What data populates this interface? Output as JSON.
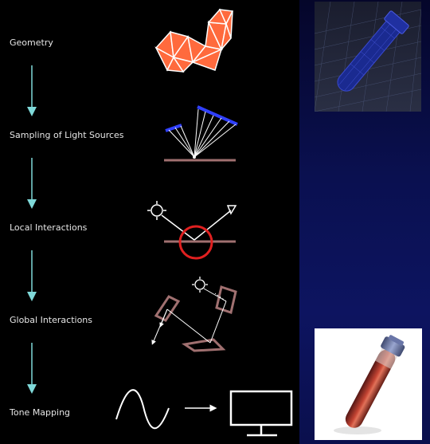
{
  "stages": [
    {
      "id": "geometry",
      "label": "Geometry"
    },
    {
      "id": "sampling",
      "label": "Sampling of Light Sources"
    },
    {
      "id": "local",
      "label": "Local Interactions"
    },
    {
      "id": "global",
      "label": "Global Interactions"
    },
    {
      "id": "tone",
      "label": "Tone Mapping"
    }
  ],
  "colors": {
    "panel": "#000000",
    "arrow": "#7fd9d9",
    "geometry_fill": "#ff6a3d",
    "light_bar": "#3040ff",
    "surface": "#a07070",
    "highlight_circle": "#e02020",
    "line": "#ffffff"
  }
}
